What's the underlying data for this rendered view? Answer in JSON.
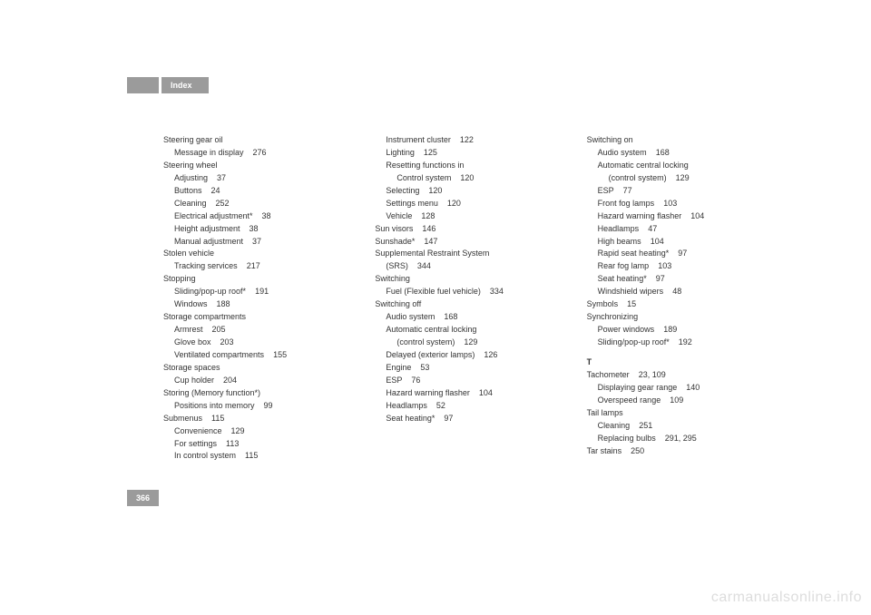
{
  "header": {
    "title": "Index"
  },
  "page_number": "366",
  "watermark": "carmanualsonline.info",
  "columns": [
    [
      {
        "level": 0,
        "text": "Steering gear oil",
        "page": ""
      },
      {
        "level": 1,
        "text": "Message in display",
        "page": "276"
      },
      {
        "level": 0,
        "text": "Steering wheel",
        "page": ""
      },
      {
        "level": 1,
        "text": "Adjusting",
        "page": "37"
      },
      {
        "level": 1,
        "text": "Buttons",
        "page": "24"
      },
      {
        "level": 1,
        "text": "Cleaning",
        "page": "252"
      },
      {
        "level": 1,
        "text": "Electrical adjustment*",
        "page": "38"
      },
      {
        "level": 1,
        "text": "Height adjustment",
        "page": "38"
      },
      {
        "level": 1,
        "text": "Manual adjustment",
        "page": "37"
      },
      {
        "level": 0,
        "text": "Stolen vehicle",
        "page": ""
      },
      {
        "level": 1,
        "text": "Tracking services",
        "page": "217"
      },
      {
        "level": 0,
        "text": "Stopping",
        "page": ""
      },
      {
        "level": 1,
        "text": "Sliding/pop-up roof*",
        "page": "191"
      },
      {
        "level": 1,
        "text": "Windows",
        "page": "188"
      },
      {
        "level": 0,
        "text": "Storage compartments",
        "page": ""
      },
      {
        "level": 1,
        "text": "Armrest",
        "page": "205"
      },
      {
        "level": 1,
        "text": "Glove box",
        "page": "203"
      },
      {
        "level": 1,
        "text": "Ventilated compartments",
        "page": "155"
      },
      {
        "level": 0,
        "text": "Storage spaces",
        "page": ""
      },
      {
        "level": 1,
        "text": "Cup holder",
        "page": "204"
      },
      {
        "level": 0,
        "text": "Storing (Memory function*)",
        "page": ""
      },
      {
        "level": 1,
        "text": "Positions into memory",
        "page": "99"
      },
      {
        "level": 0,
        "text": "Submenus",
        "page": "115"
      },
      {
        "level": 1,
        "text": "Convenience",
        "page": "129"
      },
      {
        "level": 1,
        "text": "For settings",
        "page": "113"
      },
      {
        "level": 1,
        "text": "In control system",
        "page": "115"
      }
    ],
    [
      {
        "level": 1,
        "text": "Instrument cluster",
        "page": "122"
      },
      {
        "level": 1,
        "text": "Lighting",
        "page": "125"
      },
      {
        "level": 1,
        "text": "Resetting functions in",
        "page": ""
      },
      {
        "level": 2,
        "text": "Control system",
        "page": "120"
      },
      {
        "level": 1,
        "text": "Selecting",
        "page": "120"
      },
      {
        "level": 1,
        "text": "Settings menu",
        "page": "120"
      },
      {
        "level": 1,
        "text": "Vehicle",
        "page": "128"
      },
      {
        "level": 0,
        "text": "Sun visors",
        "page": "146"
      },
      {
        "level": 0,
        "text": "Sunshade*",
        "page": "147"
      },
      {
        "level": 0,
        "text": "Supplemental Restraint System",
        "page": ""
      },
      {
        "level": 1,
        "text": "(SRS)",
        "page": "344"
      },
      {
        "level": 0,
        "text": "Switching",
        "page": ""
      },
      {
        "level": 1,
        "text": "Fuel (Flexible fuel vehicle)",
        "page": "334"
      },
      {
        "level": 0,
        "text": "Switching off",
        "page": ""
      },
      {
        "level": 1,
        "text": "Audio system",
        "page": "168"
      },
      {
        "level": 1,
        "text": "Automatic central locking",
        "page": ""
      },
      {
        "level": 2,
        "text": "(control system)",
        "page": "129"
      },
      {
        "level": 1,
        "text": "Delayed (exterior lamps)",
        "page": "126"
      },
      {
        "level": 1,
        "text": "Engine",
        "page": "53"
      },
      {
        "level": 1,
        "text": "ESP",
        "page": "76"
      },
      {
        "level": 1,
        "text": "Hazard warning flasher",
        "page": "104"
      },
      {
        "level": 1,
        "text": "Headlamps",
        "page": "52"
      },
      {
        "level": 1,
        "text": "Seat heating*",
        "page": "97"
      }
    ],
    [
      {
        "level": 0,
        "text": "Switching on",
        "page": ""
      },
      {
        "level": 1,
        "text": "Audio system",
        "page": "168"
      },
      {
        "level": 1,
        "text": "Automatic central locking",
        "page": ""
      },
      {
        "level": 2,
        "text": "(control system)",
        "page": "129"
      },
      {
        "level": 1,
        "text": "ESP",
        "page": "77"
      },
      {
        "level": 1,
        "text": "Front fog lamps",
        "page": "103"
      },
      {
        "level": 1,
        "text": "Hazard warning flasher",
        "page": "104"
      },
      {
        "level": 1,
        "text": "Headlamps",
        "page": "47"
      },
      {
        "level": 1,
        "text": "High beams",
        "page": "104"
      },
      {
        "level": 1,
        "text": "Rapid seat heating*",
        "page": "97"
      },
      {
        "level": 1,
        "text": "Rear fog lamp",
        "page": "103"
      },
      {
        "level": 1,
        "text": "Seat heating*",
        "page": "97"
      },
      {
        "level": 1,
        "text": "Windshield wipers",
        "page": "48"
      },
      {
        "level": 0,
        "text": "Symbols",
        "page": "15"
      },
      {
        "level": 0,
        "text": "Synchronizing",
        "page": ""
      },
      {
        "level": 1,
        "text": "Power windows",
        "page": "189"
      },
      {
        "level": 1,
        "text": "Sliding/pop-up roof*",
        "page": "192"
      },
      {
        "level": 0,
        "text": "T",
        "page": "",
        "section": true
      },
      {
        "level": 0,
        "text": "Tachometer",
        "page": "23, 109"
      },
      {
        "level": 1,
        "text": "Displaying gear range",
        "page": "140"
      },
      {
        "level": 1,
        "text": "Overspeed range",
        "page": "109"
      },
      {
        "level": 0,
        "text": "Tail lamps",
        "page": ""
      },
      {
        "level": 1,
        "text": "Cleaning",
        "page": "251"
      },
      {
        "level": 1,
        "text": "Replacing bulbs",
        "page": "291, 295"
      },
      {
        "level": 0,
        "text": "Tar stains",
        "page": "250"
      }
    ]
  ]
}
